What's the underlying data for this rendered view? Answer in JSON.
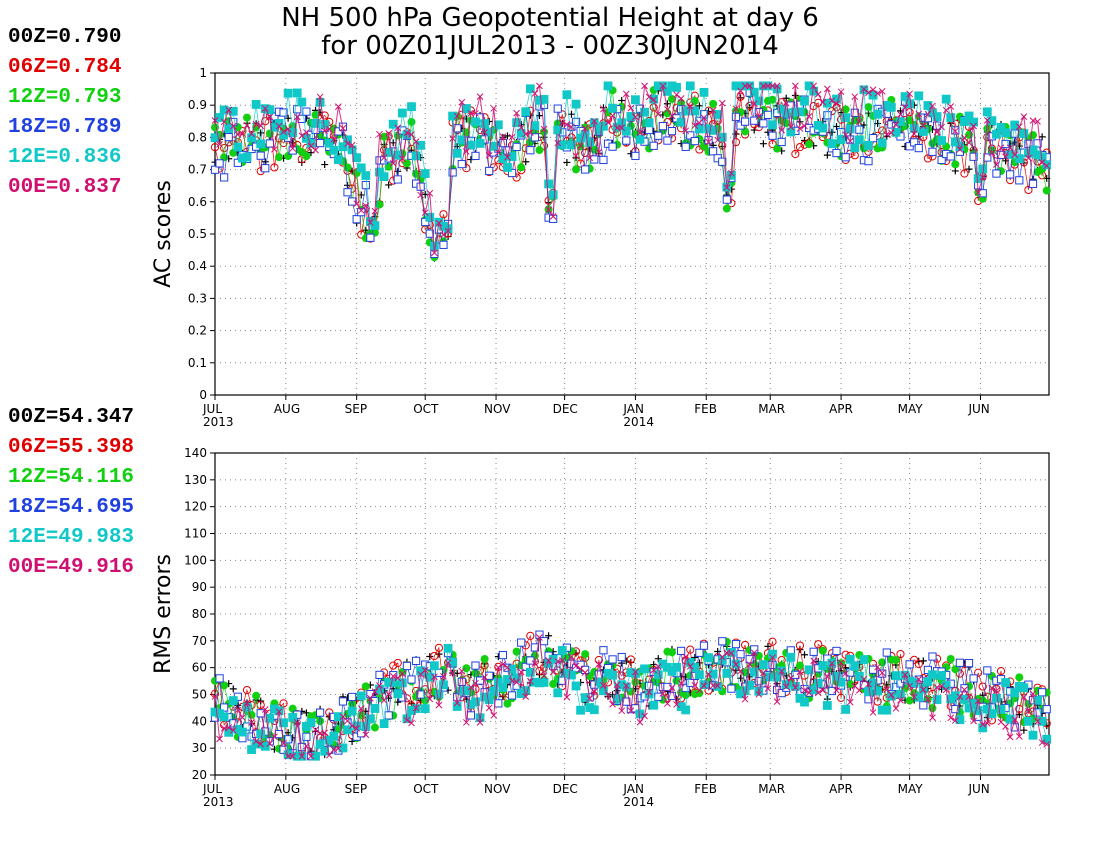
{
  "title_line1": "NH 500 hPa Geopotential Height at day 6",
  "title_line2": "for 00Z01JUL2013 - 00Z30JUN2014",
  "colors": {
    "00Z": "#000000",
    "06Z": "#e00000",
    "12Z": "#10d010",
    "18Z": "#2040e0",
    "12E": "#10c8c8",
    "00E": "#d01070"
  },
  "legend_top": [
    {
      "label": "00Z=0.790",
      "color": "#000000"
    },
    {
      "label": "06Z=0.784",
      "color": "#e00000"
    },
    {
      "label": "12Z=0.793",
      "color": "#10d010"
    },
    {
      "label": "18Z=0.789",
      "color": "#2040e0"
    },
    {
      "label": "12E=0.836",
      "color": "#10c8c8"
    },
    {
      "label": "00E=0.837",
      "color": "#d01070"
    }
  ],
  "legend_bottom": [
    {
      "label": "00Z=54.347",
      "color": "#000000"
    },
    {
      "label": "06Z=55.398",
      "color": "#e00000"
    },
    {
      "label": "12Z=54.116",
      "color": "#10d010"
    },
    {
      "label": "18Z=54.695",
      "color": "#2040e0"
    },
    {
      "label": "12E=49.983",
      "color": "#10c8c8"
    },
    {
      "label": "00E=49.916",
      "color": "#d01070"
    }
  ],
  "chart_data": [
    {
      "type": "scatter",
      "title": "NH 500 hPa Geopotential Height at day 6 for 00Z01JUL2013 - 00Z30JUN2014",
      "xlabel": "",
      "ylabel": "AC scores",
      "ylim": [
        0,
        1
      ],
      "yticks": [
        "0",
        "0.1",
        "0.2",
        "0.3",
        "0.4",
        "0.5",
        "0.6",
        "0.7",
        "0.8",
        "0.9",
        "1"
      ],
      "month_ticks": [
        "JUL",
        "AUG",
        "SEP",
        "OCT",
        "NOV",
        "DEC",
        "JAN",
        "FEB",
        "MAR",
        "APR",
        "MAY",
        "JUN"
      ],
      "year_ticks": [
        {
          "month": "JUL",
          "label": "2013"
        },
        {
          "month": "JAN",
          "label": "2014"
        }
      ],
      "grid": true,
      "anchor_points": [
        [
          0,
          0.76
        ],
        [
          20,
          0.8
        ],
        [
          40,
          0.82
        ],
        [
          55,
          0.78
        ],
        [
          65,
          0.56
        ],
        [
          75,
          0.74
        ],
        [
          85,
          0.8
        ],
        [
          96,
          0.5
        ],
        [
          101,
          0.78
        ],
        [
          115,
          0.82
        ],
        [
          130,
          0.74
        ],
        [
          140,
          0.86
        ],
        [
          150,
          0.82
        ],
        [
          165,
          0.77
        ],
        [
          175,
          0.88
        ],
        [
          180,
          0.82
        ],
        [
          195,
          0.88
        ],
        [
          210,
          0.86
        ],
        [
          225,
          0.8
        ],
        [
          230,
          0.92
        ],
        [
          240,
          0.88
        ],
        [
          250,
          0.85
        ],
        [
          260,
          0.86
        ],
        [
          270,
          0.83
        ],
        [
          280,
          0.82
        ],
        [
          300,
          0.84
        ],
        [
          320,
          0.8
        ],
        [
          345,
          0.76
        ],
        [
          364,
          0.72
        ]
      ],
      "dips": [
        [
          69,
          0.46
        ],
        [
          97,
          0.42
        ],
        [
          101,
          0.35
        ],
        [
          147,
          0.42
        ],
        [
          225,
          0.5
        ],
        [
          335,
          0.55
        ]
      ],
      "series": [
        {
          "name": "00Z",
          "mean": 0.79
        },
        {
          "name": "06Z",
          "mean": 0.784
        },
        {
          "name": "12Z",
          "mean": 0.793
        },
        {
          "name": "18Z",
          "mean": 0.789
        },
        {
          "name": "12E",
          "mean": 0.836
        },
        {
          "name": "00E",
          "mean": 0.837
        }
      ]
    },
    {
      "type": "scatter",
      "title": "",
      "xlabel": "",
      "ylabel": "RMS errors",
      "ylim": [
        20,
        140
      ],
      "yticks": [
        "20",
        "30",
        "40",
        "50",
        "60",
        "70",
        "80",
        "90",
        "100",
        "110",
        "120",
        "130",
        "140"
      ],
      "month_ticks": [
        "JUL",
        "AUG",
        "SEP",
        "OCT",
        "NOV",
        "DEC",
        "JAN",
        "FEB",
        "MAR",
        "APR",
        "MAY",
        "JUN"
      ],
      "year_ticks": [
        {
          "month": "JUL",
          "label": "2013"
        },
        {
          "month": "JAN",
          "label": "2014"
        }
      ],
      "grid": true,
      "anchor_points": [
        [
          0,
          47
        ],
        [
          15,
          42
        ],
        [
          30,
          38
        ],
        [
          40,
          33
        ],
        [
          50,
          36
        ],
        [
          62,
          42
        ],
        [
          75,
          50
        ],
        [
          85,
          52
        ],
        [
          95,
          55
        ],
        [
          101,
          62
        ],
        [
          110,
          50
        ],
        [
          120,
          54
        ],
        [
          130,
          55
        ],
        [
          140,
          66
        ],
        [
          150,
          62
        ],
        [
          160,
          56
        ],
        [
          175,
          56
        ],
        [
          185,
          52
        ],
        [
          195,
          56
        ],
        [
          210,
          58
        ],
        [
          225,
          60
        ],
        [
          240,
          60
        ],
        [
          260,
          58
        ],
        [
          280,
          57
        ],
        [
          300,
          55
        ],
        [
          320,
          54
        ],
        [
          345,
          48
        ],
        [
          364,
          44
        ]
      ],
      "series": [
        {
          "name": "00Z",
          "mean": 54.347
        },
        {
          "name": "06Z",
          "mean": 55.398
        },
        {
          "name": "12Z",
          "mean": 54.116
        },
        {
          "name": "18Z",
          "mean": 54.695
        },
        {
          "name": "12E",
          "mean": 49.983
        },
        {
          "name": "00E",
          "mean": 49.916
        }
      ]
    }
  ]
}
